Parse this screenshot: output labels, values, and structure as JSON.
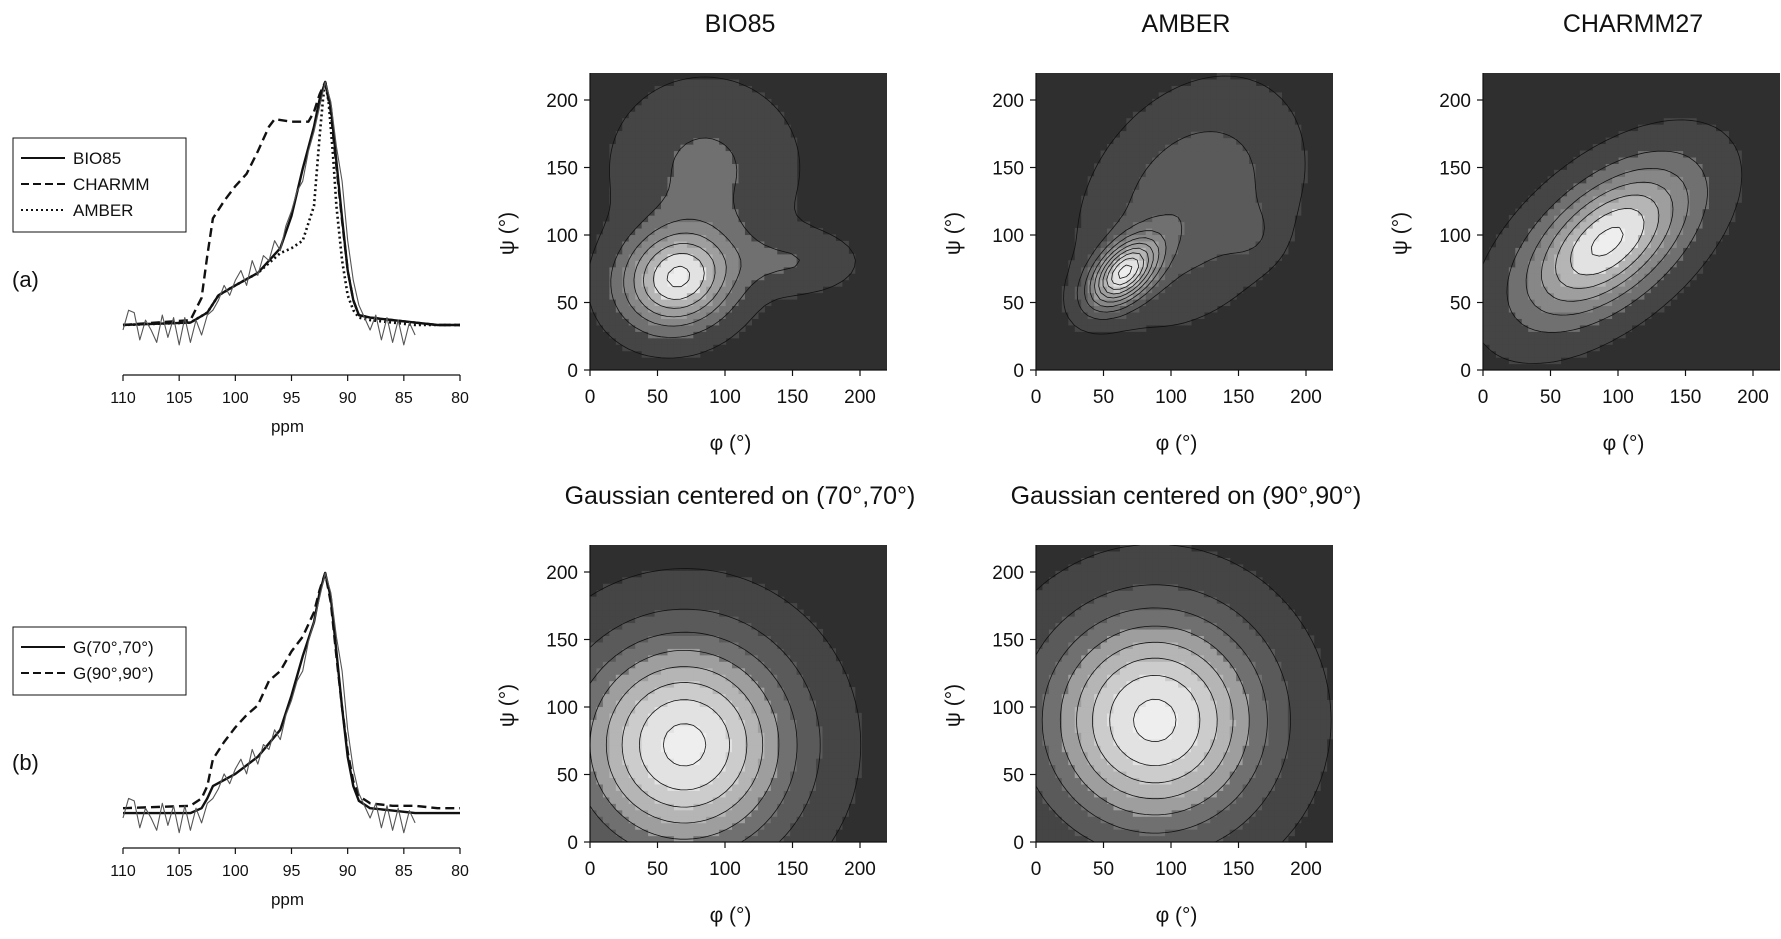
{
  "colors": {
    "background": "#ffffff",
    "ink": "#111111",
    "contour_levels": [
      "#2f2f2f",
      "#454545",
      "#5a5a5a",
      "#707070",
      "#878787",
      "#9e9e9e",
      "#b5b5b5",
      "#cccccc",
      "#e2e2e2",
      "#eeeeee"
    ]
  },
  "chart_data": [
    {
      "id": "spectrum-a",
      "type": "line",
      "panel_label": "(a)",
      "xlabel": "ppm",
      "xlim": [
        110,
        80
      ],
      "x_ticks": [
        110,
        105,
        100,
        95,
        90,
        85,
        80
      ],
      "legend": {
        "placement": "top-left",
        "entries": [
          "BIO85",
          "CHARMM",
          "AMBER"
        ]
      },
      "series": [
        {
          "name": "BIO85",
          "style": "solid",
          "x": [
            110,
            104,
            102.5,
            101.5,
            100,
            98,
            96,
            95,
            94,
            93,
            92.5,
            92,
            91.5,
            91,
            90.5,
            90,
            89.5,
            89,
            88,
            86,
            84,
            82,
            80
          ],
          "y": [
            0.02,
            0.03,
            0.07,
            0.14,
            0.18,
            0.23,
            0.33,
            0.46,
            0.65,
            0.82,
            0.93,
            1.0,
            0.9,
            0.68,
            0.45,
            0.24,
            0.12,
            0.06,
            0.05,
            0.04,
            0.03,
            0.02,
            0.02
          ]
        },
        {
          "name": "CHARMM",
          "style": "dashed",
          "x": [
            110,
            104,
            103,
            102.5,
            102,
            101,
            100,
            99,
            98,
            97,
            96.5,
            95,
            93.5,
            93,
            92.5,
            92,
            91.5,
            91,
            90.5,
            90,
            89.5,
            89,
            88,
            86,
            84,
            82,
            80
          ],
          "y": [
            0.02,
            0.04,
            0.13,
            0.3,
            0.45,
            0.52,
            0.58,
            0.63,
            0.72,
            0.82,
            0.85,
            0.84,
            0.84,
            0.88,
            0.95,
            1.0,
            0.88,
            0.66,
            0.44,
            0.24,
            0.12,
            0.06,
            0.05,
            0.04,
            0.03,
            0.02,
            0.02
          ]
        },
        {
          "name": "AMBER",
          "style": "dotted",
          "x": [
            110,
            104,
            102.5,
            101.5,
            100,
            98,
            96,
            95,
            94,
            93,
            92.5,
            92.2,
            92,
            91.7,
            91.3,
            91,
            90.5,
            90,
            89.5,
            89,
            88,
            86,
            84,
            82,
            80
          ],
          "y": [
            0.02,
            0.03,
            0.07,
            0.14,
            0.18,
            0.23,
            0.31,
            0.33,
            0.36,
            0.5,
            0.78,
            0.93,
            1.0,
            0.92,
            0.7,
            0.5,
            0.28,
            0.14,
            0.08,
            0.05,
            0.04,
            0.03,
            0.02,
            0.02,
            0.02
          ]
        },
        {
          "name": "",
          "style": "experimental",
          "x": [
            110,
            109.5,
            109,
            108.5,
            108,
            107.5,
            107,
            106.5,
            106,
            105.5,
            105,
            104.5,
            104,
            103.5,
            103,
            102.5,
            102,
            101.5,
            101,
            100.5,
            100,
            99.5,
            99,
            98.5,
            98,
            97.5,
            97,
            96.5,
            96,
            95.5,
            95,
            94.5,
            94,
            93.5,
            93,
            92.5,
            92,
            91.5,
            91,
            90.5,
            90,
            89.5,
            89,
            88.5,
            88,
            87.5,
            87,
            86.5,
            86,
            85.5,
            85,
            84.5,
            84
          ],
          "y": [
            0.0,
            0.08,
            0.07,
            -0.04,
            0.04,
            0.0,
            -0.05,
            0.06,
            -0.03,
            0.05,
            -0.06,
            0.05,
            -0.05,
            0.04,
            -0.02,
            0.06,
            0.08,
            0.12,
            0.18,
            0.14,
            0.2,
            0.24,
            0.18,
            0.28,
            0.22,
            0.3,
            0.28,
            0.36,
            0.32,
            0.42,
            0.48,
            0.56,
            0.6,
            0.72,
            0.8,
            0.9,
            1.0,
            0.92,
            0.74,
            0.6,
            0.36,
            0.2,
            0.1,
            0.05,
            0.0,
            0.06,
            -0.04,
            0.05,
            -0.05,
            0.04,
            -0.06,
            0.03,
            -0.02
          ]
        }
      ]
    },
    {
      "id": "spectrum-b",
      "type": "line",
      "panel_label": "(b)",
      "xlabel": "ppm",
      "xlim": [
        110,
        80
      ],
      "x_ticks": [
        110,
        105,
        100,
        95,
        90,
        85,
        80
      ],
      "legend": {
        "placement": "top-left",
        "entries": [
          "G(70°,70°)",
          "G(90°,90°)"
        ]
      },
      "series": [
        {
          "name": "G(70°,70°)",
          "style": "solid",
          "x": [
            110,
            104,
            103,
            102.5,
            102,
            100,
            98,
            96,
            95,
            94,
            93,
            92.5,
            92,
            91.5,
            91,
            90.5,
            90,
            89.5,
            89,
            88,
            86,
            84,
            82,
            80
          ],
          "y": [
            0.02,
            0.02,
            0.04,
            0.08,
            0.13,
            0.18,
            0.25,
            0.36,
            0.5,
            0.66,
            0.8,
            0.92,
            1.0,
            0.9,
            0.68,
            0.45,
            0.25,
            0.13,
            0.07,
            0.04,
            0.03,
            0.02,
            0.02,
            0.02
          ]
        },
        {
          "name": "G(90°,90°)",
          "style": "dashed",
          "x": [
            110,
            104,
            103,
            102.5,
            102,
            101,
            100,
            99,
            98,
            97,
            96,
            95,
            94,
            93,
            92.5,
            92,
            91.5,
            91,
            90.5,
            90,
            89.5,
            89,
            88,
            86,
            84,
            82,
            80
          ],
          "y": [
            0.04,
            0.05,
            0.08,
            0.13,
            0.24,
            0.31,
            0.37,
            0.42,
            0.46,
            0.56,
            0.6,
            0.68,
            0.74,
            0.84,
            0.93,
            1.0,
            0.88,
            0.66,
            0.45,
            0.27,
            0.15,
            0.09,
            0.06,
            0.05,
            0.05,
            0.04,
            0.04
          ]
        },
        {
          "name": "",
          "style": "experimental",
          "x": [
            110,
            109.5,
            109,
            108.5,
            108,
            107.5,
            107,
            106.5,
            106,
            105.5,
            105,
            104.5,
            104,
            103.5,
            103,
            102.5,
            102,
            101.5,
            101,
            100.5,
            100,
            99.5,
            99,
            98.5,
            98,
            97.5,
            97,
            96.5,
            96,
            95.5,
            95,
            94.5,
            94,
            93.5,
            93,
            92.5,
            92,
            91.5,
            91,
            90.5,
            90,
            89.5,
            89,
            88.5,
            88,
            87.5,
            87,
            86.5,
            86,
            85.5,
            85,
            84.5,
            84
          ],
          "y": [
            0.0,
            0.08,
            0.07,
            -0.04,
            0.04,
            0.0,
            -0.05,
            0.06,
            -0.03,
            0.05,
            -0.06,
            0.05,
            -0.05,
            0.04,
            -0.02,
            0.06,
            0.08,
            0.12,
            0.18,
            0.14,
            0.2,
            0.24,
            0.18,
            0.28,
            0.22,
            0.3,
            0.28,
            0.36,
            0.32,
            0.42,
            0.48,
            0.56,
            0.6,
            0.72,
            0.8,
            0.9,
            1.0,
            0.92,
            0.74,
            0.6,
            0.36,
            0.2,
            0.1,
            0.05,
            0.0,
            0.06,
            -0.04,
            0.05,
            -0.05,
            0.04,
            -0.06,
            0.03,
            -0.02
          ]
        }
      ]
    },
    {
      "id": "map-bio85",
      "type": "heatmap",
      "title": "BIO85",
      "xlabel": "φ (°)",
      "ylabel": "ψ (°)",
      "xlim": [
        0,
        220
      ],
      "ylim": [
        0,
        220
      ],
      "x_ticks": [
        0,
        50,
        100,
        150,
        200
      ],
      "y_ticks": [
        0,
        50,
        100,
        150,
        200
      ],
      "levels": 7,
      "components": [
        {
          "cx": 65,
          "cy": 68,
          "sx": 28,
          "sy": 25,
          "rho": 0.1,
          "amp": 1.0
        },
        {
          "cx": 85,
          "cy": 150,
          "sx": 42,
          "sy": 40,
          "rho": 0,
          "amp": 0.25
        },
        {
          "cx": 150,
          "cy": 80,
          "sx": 30,
          "sy": 15,
          "rho": 0,
          "amp": 0.2
        }
      ]
    },
    {
      "id": "map-amber",
      "type": "heatmap",
      "title": "AMBER",
      "xlabel": "φ (°)",
      "ylabel": "ψ (°)",
      "xlim": [
        0,
        220
      ],
      "ylim": [
        0,
        220
      ],
      "x_ticks": [
        0,
        50,
        100,
        150,
        200
      ],
      "y_ticks": [
        0,
        50,
        100,
        150,
        200
      ],
      "levels": 10,
      "components": [
        {
          "cx": 65,
          "cy": 72,
          "sx": 17,
          "sy": 17,
          "rho": 0.5,
          "amp": 1.0
        },
        {
          "cx": 115,
          "cy": 125,
          "sx": 50,
          "sy": 55,
          "rho": 0.3,
          "amp": 0.28
        },
        {
          "cx": 160,
          "cy": 100,
          "sx": 14,
          "sy": 14,
          "rho": 0,
          "amp": 0.08
        }
      ]
    },
    {
      "id": "map-charmm27",
      "type": "heatmap",
      "title": "CHARMM27",
      "xlabel": "φ (°)",
      "ylabel": "ψ (°)",
      "xlim": [
        0,
        220
      ],
      "ylim": [
        0,
        220
      ],
      "x_ticks": [
        0,
        50,
        100,
        150,
        200
      ],
      "y_ticks": [
        0,
        50,
        100,
        150,
        200
      ],
      "levels": 7,
      "components": [
        {
          "cx": 92,
          "cy": 95,
          "sx": 42,
          "sy": 38,
          "rho": 0.55,
          "amp": 1.0
        }
      ]
    },
    {
      "id": "map-g70",
      "type": "heatmap",
      "title": "Gaussian centered on (70°,70°)",
      "xlabel": "φ (°)",
      "ylabel": "ψ (°)",
      "xlim": [
        0,
        220
      ],
      "ylim": [
        0,
        220
      ],
      "x_ticks": [
        0,
        50,
        100,
        150,
        200
      ],
      "y_ticks": [
        0,
        50,
        100,
        150,
        200
      ],
      "levels": 8,
      "components": [
        {
          "cx": 70,
          "cy": 72,
          "sx": 55,
          "sy": 55,
          "rho": 0,
          "amp": 1.0
        }
      ]
    },
    {
      "id": "map-g90",
      "type": "heatmap",
      "title": "Gaussian centered on (90°,90°)",
      "xlabel": "φ (°)",
      "ylabel": "ψ (°)",
      "xlim": [
        0,
        220
      ],
      "ylim": [
        0,
        220
      ],
      "x_ticks": [
        0,
        50,
        100,
        150,
        200
      ],
      "y_ticks": [
        0,
        50,
        100,
        150,
        200
      ],
      "levels": 8,
      "components": [
        {
          "cx": 88,
          "cy": 90,
          "sx": 55,
          "sy": 55,
          "rho": 0,
          "amp": 1.0
        }
      ]
    }
  ]
}
